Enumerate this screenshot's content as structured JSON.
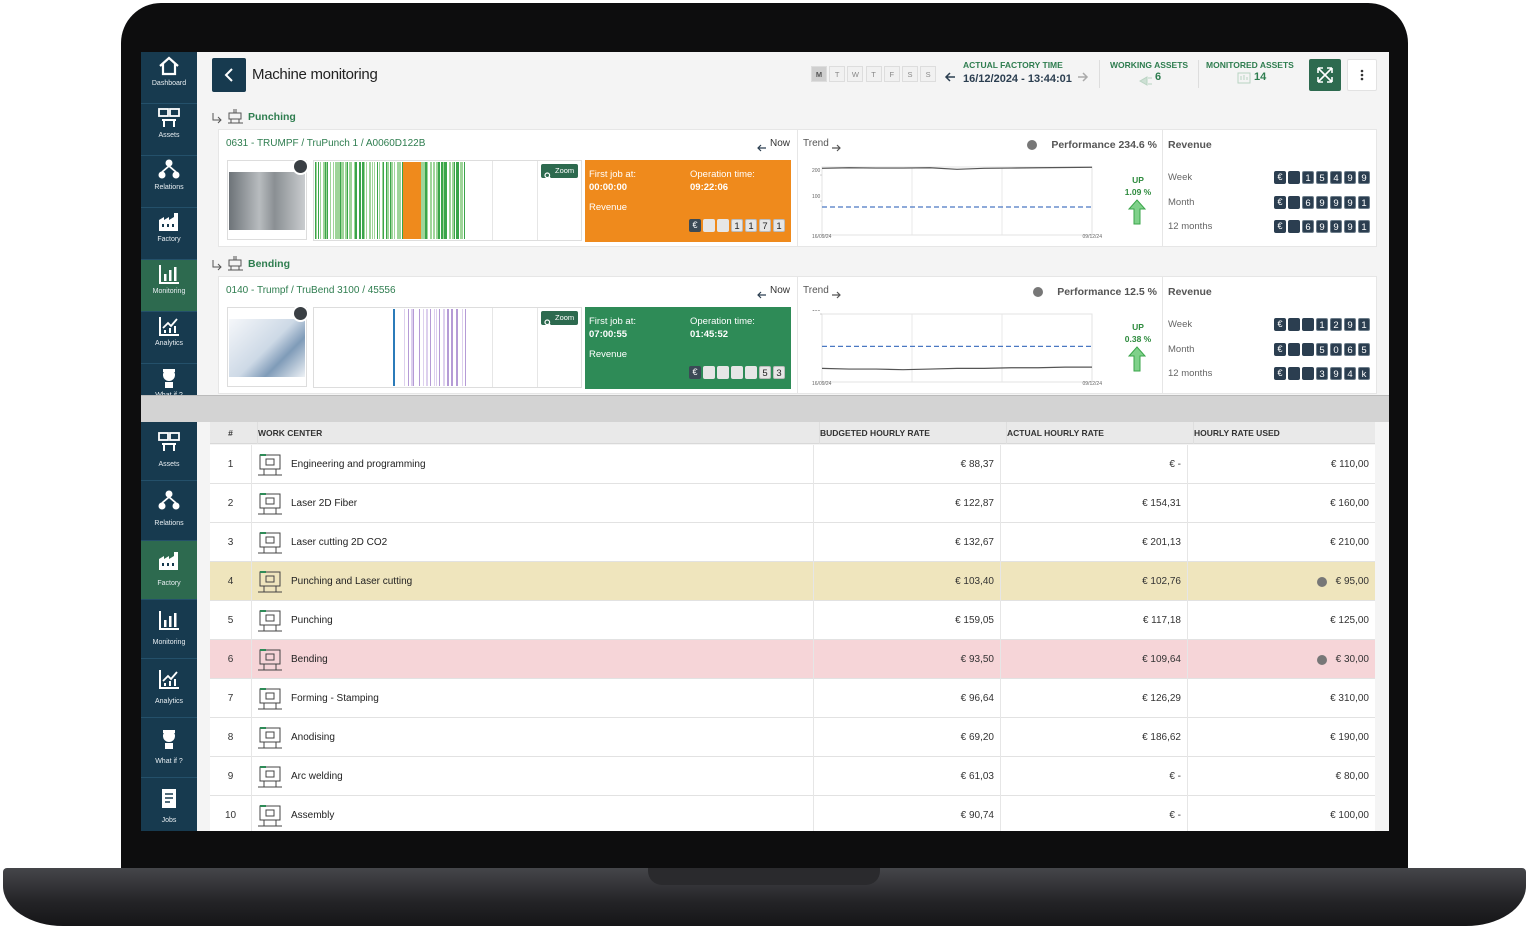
{
  "sidebar_top": {
    "items": [
      "Dashboard",
      "Assets",
      "Relations",
      "Factory",
      "Monitoring",
      "Analytics",
      "What if ?"
    ],
    "active": 4
  },
  "header": {
    "title": "Machine monitoring",
    "weekdays": [
      "M",
      "T",
      "W",
      "T",
      "F",
      "S",
      "S"
    ],
    "factory_time_label": "ACTUAL FACTORY TIME",
    "factory_time": "16/12/2024 - 13:44:01",
    "working_assets_label": "WORKING ASSETS",
    "working_assets": 6,
    "monitored_assets_label": "MONITORED ASSETS",
    "monitored_assets": 14
  },
  "currency": "€",
  "machines": [
    {
      "group": "Punching",
      "name": "0631 - TRUMPF / TruPunch 1 / A0060D122B",
      "now": "Now",
      "zoom": "Zoom",
      "status_color": "#ef8a1c",
      "first_job_label": "First job at:",
      "first_job": "00:00:00",
      "operation_label": "Operation time:",
      "operation_time": "09:22:06",
      "revenue_label": "Revenue",
      "revenue_digits": [
        "1",
        "1",
        "7",
        "1"
      ],
      "trend": {
        "label": "Trend",
        "ylim": [
          -31,
          231
        ],
        "yticks": [
          200,
          100
        ],
        "x_labels": [
          "16/09/24",
          "09/12/24"
        ],
        "values": [
          226,
          228,
          227,
          227,
          228,
          222,
          226,
          227,
          228,
          229,
          230
        ],
        "target": 77
      },
      "performance": "Performance 234.6 %",
      "direction": "UP",
      "change": "1.09 %",
      "revenue": {
        "title": "Revenue",
        "rows": [
          {
            "period": "Week",
            "digits": [
              "1",
              "5",
              "4",
              "9",
              "9"
            ]
          },
          {
            "period": "Month",
            "digits": [
              "6",
              "9",
              "9",
              "9",
              "1"
            ]
          },
          {
            "period": "12 months",
            "digits": [
              "6",
              "9",
              "9",
              "9",
              "1"
            ]
          }
        ]
      }
    },
    {
      "group": "Bending",
      "name": "0140 - Trumpf / TruBend 3100 / 45556",
      "now": "Now",
      "zoom": "Zoom",
      "status_color": "#2e8b57",
      "first_job_label": "First job at:",
      "first_job": "07:00:55",
      "operation_label": "Operation time:",
      "operation_time": "01:45:52",
      "revenue_label": "Revenue",
      "revenue_digits": [
        "5",
        "3"
      ],
      "trend": {
        "label": "Trend",
        "ylim": [
          -5,
          100
        ],
        "yticks": [
          100
        ],
        "x_labels": [
          "16/09/24",
          "09/12/24"
        ],
        "values": [
          16,
          15,
          15,
          14,
          15,
          16,
          16,
          17,
          17,
          18,
          18
        ],
        "target": 50
      },
      "performance": "Performance 12.5 %",
      "direction": "UP",
      "change": "0.38 %",
      "revenue": {
        "title": "Revenue",
        "rows": [
          {
            "period": "Week",
            "digits": [
              "1",
              "2",
              "9",
              "1"
            ]
          },
          {
            "period": "Month",
            "digits": [
              "5",
              "0",
              "6",
              "5"
            ]
          },
          {
            "period": "12 months",
            "digits": [
              "3",
              "9",
              "4",
              "k"
            ]
          }
        ]
      }
    }
  ],
  "sidebar_bottom": {
    "items": [
      "Assets",
      "Relations",
      "Factory",
      "Monitoring",
      "Analytics",
      "What if ?",
      "Jobs"
    ],
    "active": 2
  },
  "table": {
    "columns": [
      "#",
      "WORK CENTER",
      "BUDGETED HOURLY RATE",
      "ACTUAL HOURLY RATE",
      "HOURLY RATE USED"
    ],
    "rows": [
      {
        "cells": [
          1,
          "Engineering and programming",
          "€ 88,37",
          "€ -",
          "€ 110,00"
        ]
      },
      {
        "cells": [
          2,
          "Laser 2D Fiber",
          "€ 122,87",
          "€ 154,31",
          "€ 160,00"
        ]
      },
      {
        "cells": [
          3,
          "Laser cutting 2D CO2",
          "€ 132,67",
          "€ 201,13",
          "€ 210,00"
        ]
      },
      {
        "cells": [
          4,
          "Punching and Laser cutting",
          "€ 103,40",
          "€ 102,76",
          "€ 95,00"
        ],
        "color": "#efe5bd"
      },
      {
        "cells": [
          5,
          "Punching",
          "€ 159,05",
          "€ 117,18",
          "€ 125,00"
        ]
      },
      {
        "cells": [
          6,
          "Bending",
          "€ 93,50",
          "€ 109,64",
          "€ 30,00"
        ],
        "color": "#f6d5d8"
      },
      {
        "cells": [
          7,
          "Forming - Stamping",
          "€ 96,64",
          "€ 126,29",
          "€ 310,00"
        ]
      },
      {
        "cells": [
          8,
          "Anodising",
          "€ 69,20",
          "€ 186,62",
          "€ 190,00"
        ]
      },
      {
        "cells": [
          9,
          "Arc welding",
          "€ 61,03",
          "€ -",
          "€ 80,00"
        ]
      },
      {
        "cells": [
          10,
          "Assembly",
          "€ 90,74",
          "€ -",
          "€ 100,00"
        ]
      }
    ]
  }
}
